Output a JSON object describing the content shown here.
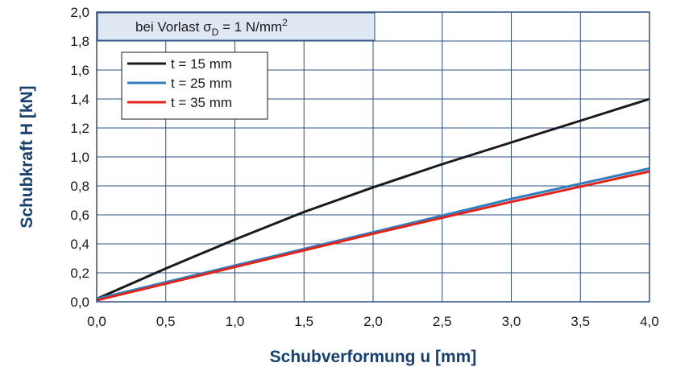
{
  "chart_data": {
    "type": "line",
    "xlabel": "Schubverformung u [mm]",
    "ylabel": "Schubkraft H [kN]",
    "xlim": [
      0.0,
      4.0
    ],
    "ylim": [
      0.0,
      2.0
    ],
    "x_ticks": [
      "0,0",
      "0,5",
      "1,0",
      "1,5",
      "2,0",
      "2,5",
      "3,0",
      "3,5",
      "4,0"
    ],
    "y_ticks": [
      "0,0",
      "0,2",
      "0,4",
      "0,6",
      "0,8",
      "1,0",
      "1,2",
      "1,4",
      "1,6",
      "1,8",
      "2,0"
    ],
    "grid": true,
    "annotation": {
      "prefix": "bei Vorlast σ",
      "subscript": "D",
      "suffix": " = 1 N/mm",
      "superscript": "2"
    },
    "legend_position": "top-left",
    "series": [
      {
        "name": "t = 15 mm",
        "color": "#1a1a1a",
        "x": [
          0.0,
          0.5,
          1.0,
          1.5,
          2.0,
          2.5,
          3.0,
          3.5,
          4.0
        ],
        "y": [
          0.02,
          0.23,
          0.43,
          0.62,
          0.79,
          0.95,
          1.1,
          1.25,
          1.4
        ]
      },
      {
        "name": "t = 25 mm",
        "color": "#2f7fc0",
        "x": [
          0.0,
          1.0,
          2.0,
          3.0,
          4.0
        ],
        "y": [
          0.02,
          0.25,
          0.48,
          0.71,
          0.92
        ]
      },
      {
        "name": "t = 35 mm",
        "color": "#e2231a",
        "x": [
          0.0,
          1.0,
          2.0,
          3.0,
          4.0
        ],
        "y": [
          0.01,
          0.24,
          0.47,
          0.69,
          0.9
        ]
      }
    ]
  }
}
